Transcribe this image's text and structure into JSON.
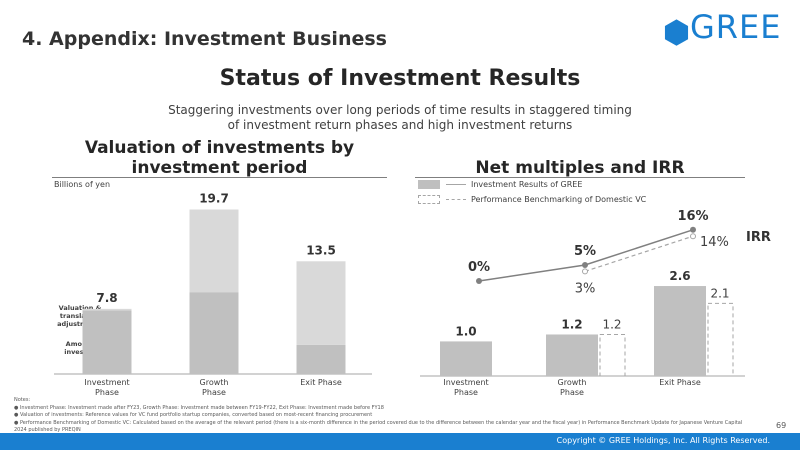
{
  "header": {
    "section_title": "4. Appendix: Investment Business",
    "logo_text": "GREE",
    "brand_color": "#1a7fd0"
  },
  "main_title": "Status of Investment Results",
  "subtitle_line1": "Staggering investments over long periods of time results in staggered timing",
  "subtitle_line2": "of investment return phases and high investment returns",
  "left_panel": {
    "title_line1": "Valuation of investments by",
    "title_line2": "investment period",
    "unit_label": "Billions of yen",
    "segment_label_top": [
      "Valuation &",
      "translation",
      "adjustments"
    ],
    "segment_label_bottom": [
      "Amount",
      "invested"
    ]
  },
  "right_panel": {
    "title": "Net multiples and IRR",
    "legend_solid": "Investment Results of GREE",
    "legend_dashed": "Performance Benchmarking of Domestic VC",
    "irr_label": "IRR"
  },
  "chart_data": [
    {
      "type": "bar",
      "stacked": true,
      "categories": [
        [
          "Investment",
          "Phase"
        ],
        [
          "Growth",
          "Phase"
        ],
        [
          "Exit Phase"
        ]
      ],
      "totals": [
        7.8,
        19.7,
        13.5
      ],
      "series": [
        {
          "name": "Amount invested",
          "values": [
            7.6,
            9.8,
            3.5
          ],
          "color": "#c0c0c0"
        },
        {
          "name": "Valuation & translation adjustments",
          "values": [
            0.2,
            9.9,
            10.0
          ],
          "color": "#d9d9d9"
        }
      ],
      "ylabel": "Billions of yen",
      "ylim": [
        0,
        21
      ],
      "grid": false
    },
    {
      "type": "bar",
      "categories": [
        [
          "Investment",
          "Phase"
        ],
        [
          "Growth",
          "Phase"
        ],
        [
          "Exit Phase"
        ]
      ],
      "series": [
        {
          "name": "Investment Results of GREE",
          "values": [
            1.0,
            1.2,
            2.6
          ],
          "labels": [
            "1.0",
            "1.2",
            "2.6"
          ],
          "style": "solid",
          "color": "#c0c0c0"
        },
        {
          "name": "Performance Benchmarking of Domestic VC",
          "values": [
            null,
            1.2,
            2.1
          ],
          "labels": [
            "",
            "1.2",
            "2.1"
          ],
          "style": "dashed",
          "color": "#a6a6a6"
        }
      ],
      "ylim": [
        0,
        3.0
      ],
      "grid": false
    },
    {
      "type": "line",
      "categories": [
        [
          "Investment",
          "Phase"
        ],
        [
          "Growth",
          "Phase"
        ],
        [
          "Exit Phase"
        ]
      ],
      "series": [
        {
          "name": "Investment Results of GREE",
          "values": [
            0,
            5,
            16
          ],
          "labels": [
            "0%",
            "5%",
            "16%"
          ],
          "style": "solid"
        },
        {
          "name": "Performance Benchmarking of Domestic VC",
          "values": [
            null,
            3,
            14
          ],
          "labels": [
            "",
            "3%",
            "14%"
          ],
          "style": "dashed"
        }
      ],
      "ylabel": "IRR",
      "ylim": [
        0,
        16
      ]
    }
  ],
  "notes": {
    "heading": "Notes:",
    "items": [
      "Investment Phase: Investment made after FY23, Growth Phase: Investment made between FY19-FY22, Exit Phase: Investment made before FY18",
      "Valuation of investments: Reference values for VC fund portfolio startup companies, converted based on most-recent financing procurement",
      "Performance Benchmarking of Domestic VC: Calculated based on the average of the relevant period (there is a six-month difference in the period covered due to the difference between the calendar year and the fiscal year) in Performance Benchmark Update for Japanese Venture Capital 2024 published by PREQIN"
    ]
  },
  "page_number": "69",
  "footer": {
    "copyright": "Copyright © GREE Holdings, Inc. All Rights Reserved."
  }
}
